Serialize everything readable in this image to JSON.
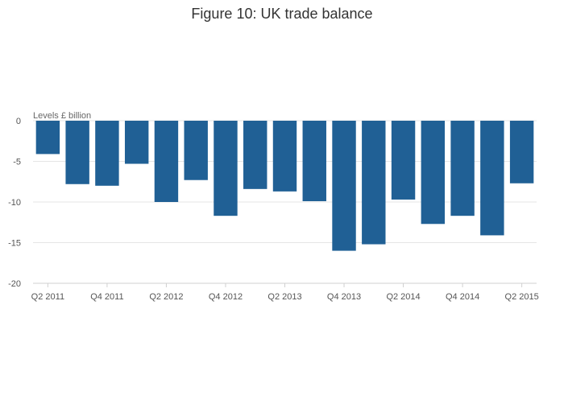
{
  "chart_data": {
    "type": "bar",
    "title": "Figure 10: UK trade balance",
    "units_label": "Levels £ billion",
    "categories": [
      "Q2 2011",
      "Q3 2011",
      "Q4 2011",
      "Q1 2012",
      "Q2 2012",
      "Q3 2012",
      "Q4 2012",
      "Q1 2013",
      "Q2 2013",
      "Q3 2013",
      "Q4 2013",
      "Q1 2014",
      "Q2 2014",
      "Q3 2014",
      "Q4 2014",
      "Q1 2015",
      "Q2 2015"
    ],
    "x_tick_labels": [
      "Q2 2011",
      "Q4 2011",
      "Q2 2012",
      "Q4 2012",
      "Q2 2013",
      "Q4 2013",
      "Q2 2014",
      "Q4 2014",
      "Q2 2015"
    ],
    "values": [
      -4.1,
      -7.8,
      -8.0,
      -5.3,
      -10.0,
      -7.3,
      -11.7,
      -8.4,
      -8.7,
      -9.9,
      -16.0,
      -15.2,
      -9.7,
      -12.7,
      -11.7,
      -14.1,
      -7.7
    ],
    "ylim": [
      -20,
      0
    ],
    "y_ticks": [
      0,
      -5,
      -10,
      -15,
      -20
    ],
    "y_tick_labels": [
      "0",
      "-5",
      "-10",
      "-15",
      "-20"
    ],
    "grid": true,
    "bar_color": "#206095",
    "grid_color": "#e5e5e5",
    "axis_color": "#d0d0d0"
  }
}
